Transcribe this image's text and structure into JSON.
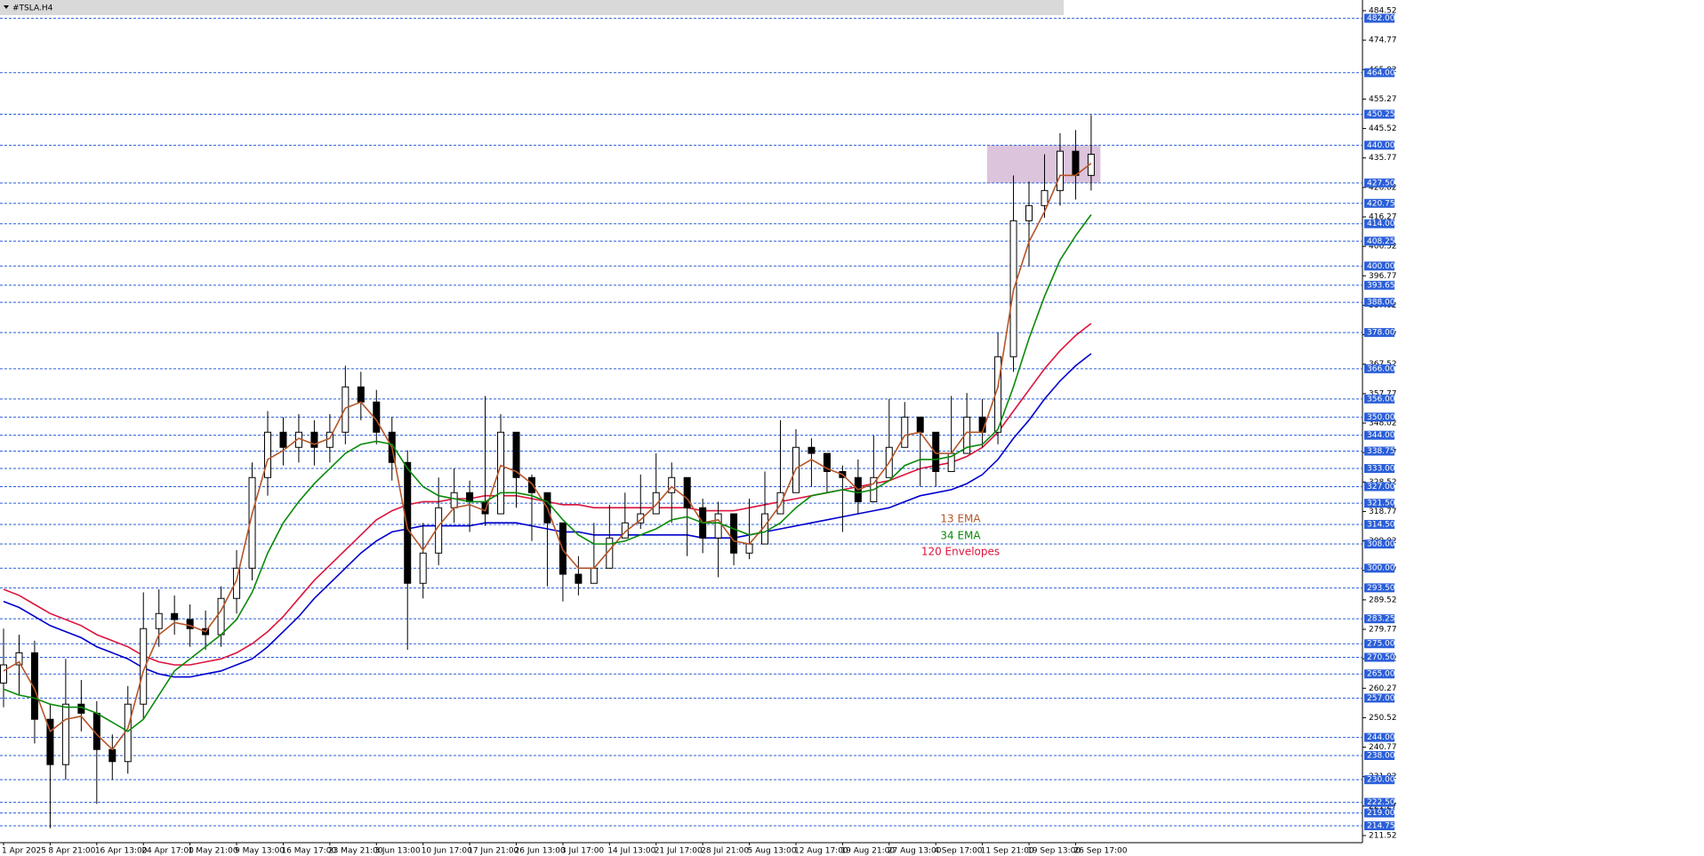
{
  "chart_data": {
    "type": "candlestick",
    "title": "#TSLA.H4",
    "categories": [
      "1 Apr 2025",
      null,
      null,
      "8 Apr 21:00",
      null,
      null,
      "16 Apr 13:00",
      null,
      null,
      "24 Apr 17:00",
      null,
      null,
      "1 May 21:00",
      null,
      null,
      "9 May 13:00",
      null,
      null,
      "16 May 17:00",
      null,
      null,
      "23 May 21:00",
      null,
      null,
      "3 Jun 13:00",
      null,
      null,
      "10 Jun 17:00",
      null,
      null,
      "17 Jun 21:00",
      null,
      null,
      "26 Jun 13:00",
      null,
      null,
      "3 Jul 17:00",
      null,
      null,
      "14 Jul 13:00",
      null,
      null,
      "21 Jul 17:00",
      null,
      null,
      "28 Jul 21:00",
      null,
      null,
      "5 Aug 13:00",
      null,
      null,
      "12 Aug 17:00",
      null,
      null,
      "19 Aug 21:00",
      null,
      null,
      "27 Aug 13:00",
      null,
      null,
      "4 Sep 17:00",
      null,
      null,
      "11 Sep 21:00",
      null,
      null,
      "19 Sep 13:00",
      null,
      null,
      "26 Sep 17:00",
      null
    ],
    "candles": {
      "up_color": "#ffffff",
      "down_color": "#000000",
      "open": [
        262,
        268,
        272,
        250,
        235,
        255,
        252,
        240,
        236,
        255,
        280,
        285,
        283,
        280,
        278,
        290,
        300,
        330,
        345,
        340,
        345,
        340,
        345,
        360,
        355,
        345,
        335,
        295,
        305,
        320,
        325,
        322,
        318,
        345,
        330,
        325,
        315,
        298,
        295,
        300,
        310,
        315,
        318,
        325,
        330,
        320,
        310,
        318,
        305,
        308,
        318,
        325,
        340,
        338,
        332,
        330,
        322,
        330,
        340,
        350,
        345,
        332,
        338,
        350,
        345,
        370,
        415,
        420,
        425,
        438,
        430
      ],
      "high": [
        280,
        278,
        276,
        255,
        270,
        263,
        256,
        245,
        261,
        292,
        293,
        291,
        288,
        286,
        294,
        306,
        335,
        352,
        350,
        351,
        349,
        351,
        367,
        365,
        359,
        350,
        339,
        315,
        330,
        333,
        329,
        357,
        351,
        335,
        331,
        320,
        304,
        304,
        315,
        321,
        325,
        331,
        338,
        335,
        326,
        323,
        322,
        314,
        323,
        332,
        349,
        346,
        343,
        338,
        334,
        336,
        344,
        356,
        355,
        349,
        344,
        357,
        358,
        356,
        378,
        430,
        428,
        437,
        444,
        445,
        450
      ],
      "low": [
        254,
        258,
        242,
        214,
        230,
        246,
        222,
        230,
        232,
        250,
        274,
        278,
        274,
        273,
        274,
        285,
        296,
        324,
        334,
        335,
        334,
        335,
        341,
        349,
        341,
        329,
        273,
        290,
        301,
        315,
        312,
        314,
        325,
        320,
        309,
        294,
        289,
        291,
        296,
        305,
        311,
        313,
        320,
        315,
        304,
        305,
        297,
        301,
        303,
        313,
        321,
        332,
        327,
        325,
        312,
        318,
        325,
        336,
        340,
        327,
        327,
        334,
        340,
        340,
        341,
        365,
        400,
        416,
        420,
        422,
        425
      ],
      "close": [
        268,
        272,
        250,
        235,
        255,
        252,
        240,
        236,
        255,
        280,
        285,
        283,
        280,
        278,
        290,
        300,
        330,
        345,
        340,
        345,
        340,
        345,
        360,
        355,
        345,
        335,
        295,
        305,
        320,
        325,
        322,
        318,
        345,
        330,
        325,
        315,
        298,
        295,
        300,
        310,
        315,
        318,
        325,
        330,
        320,
        310,
        318,
        305,
        308,
        318,
        325,
        340,
        338,
        332,
        330,
        322,
        330,
        340,
        350,
        345,
        332,
        338,
        350,
        345,
        370,
        415,
        420,
        425,
        438,
        430,
        437
      ]
    },
    "series": [
      {
        "name": "13 EMA",
        "color": "#b5562a",
        "values": [
          266,
          269,
          260,
          246,
          250,
          251,
          245,
          240,
          247,
          266,
          278,
          282,
          281,
          279,
          286,
          296,
          318,
          336,
          339,
          343,
          341,
          343,
          353,
          355,
          349,
          340,
          313,
          306,
          314,
          320,
          321,
          319,
          334,
          332,
          328,
          320,
          306,
          300,
          300,
          306,
          312,
          316,
          321,
          327,
          323,
          315,
          316,
          309,
          308,
          314,
          321,
          333,
          336,
          333,
          331,
          326,
          328,
          335,
          344,
          345,
          338,
          338,
          345,
          345,
          360,
          392,
          408,
          418,
          430,
          430,
          434
        ]
      },
      {
        "name": "34 EMA",
        "color": "#0a8a0a",
        "values": [
          260,
          258,
          257,
          255,
          254,
          254,
          252,
          249,
          246,
          250,
          258,
          266,
          270,
          274,
          278,
          283,
          292,
          305,
          315,
          322,
          328,
          333,
          338,
          341,
          342,
          341,
          333,
          327,
          324,
          323,
          322,
          322,
          325,
          325,
          324,
          322,
          316,
          311,
          308,
          308,
          309,
          311,
          313,
          316,
          317,
          315,
          315,
          313,
          311,
          312,
          315,
          320,
          324,
          325,
          326,
          325,
          326,
          329,
          334,
          336,
          336,
          337,
          340,
          341,
          346,
          360,
          376,
          390,
          402,
          410,
          417
        ]
      }
    ],
    "envelope": {
      "name": "120 Envelopes",
      "color": "#dc143c",
      "upper": {
        "color": "#dc143c",
        "values": [
          293,
          291,
          288,
          285,
          283,
          281,
          278,
          276,
          274,
          271,
          269,
          268,
          268,
          269,
          270,
          272,
          275,
          279,
          284,
          290,
          296,
          301,
          306,
          311,
          316,
          319,
          321,
          322,
          322,
          323,
          323,
          324,
          324,
          324,
          323,
          322,
          321,
          321,
          320,
          320,
          320,
          320,
          320,
          320,
          320,
          319,
          319,
          319,
          320,
          321,
          322,
          323,
          324,
          325,
          326,
          327,
          328,
          329,
          331,
          333,
          334,
          335,
          337,
          340,
          345,
          352,
          359,
          366,
          372,
          377,
          381
        ]
      },
      "lower": {
        "color": "#0000cd",
        "values": [
          289,
          287,
          284,
          281,
          279,
          277,
          274,
          272,
          270,
          267,
          265,
          264,
          264,
          265,
          266,
          268,
          270,
          274,
          279,
          284,
          290,
          295,
          300,
          305,
          309,
          312,
          313,
          314,
          314,
          314,
          314,
          315,
          315,
          315,
          314,
          313,
          312,
          312,
          311,
          311,
          311,
          311,
          311,
          311,
          311,
          310,
          310,
          310,
          311,
          312,
          313,
          314,
          315,
          316,
          317,
          318,
          319,
          320,
          322,
          324,
          325,
          326,
          328,
          331,
          336,
          343,
          349,
          356,
          362,
          367,
          371
        ]
      }
    },
    "zone": {
      "low": 427.5,
      "high": 440,
      "color": "#d8bfd8"
    },
    "levels": [
      {
        "value": 482,
        "label": "482.00"
      },
      {
        "value": 464,
        "label": "464.00"
      },
      {
        "value": 450.25,
        "label": "450.25"
      },
      {
        "value": 440,
        "label": "440.00"
      },
      {
        "value": 427.5,
        "label": "427.50"
      },
      {
        "value": 420.75,
        "label": "420.75"
      },
      {
        "value": 414,
        "label": "414.00"
      },
      {
        "value": 408.25,
        "label": "408.25"
      },
      {
        "value": 400,
        "label": "400.00"
      },
      {
        "value": 393.65,
        "label": "393.65"
      },
      {
        "value": 388,
        "label": "388.00"
      },
      {
        "value": 378,
        "label": "378.00"
      },
      {
        "value": 366,
        "label": "366.00"
      },
      {
        "value": 356,
        "label": "356.00"
      },
      {
        "value": 350,
        "label": "350.00"
      },
      {
        "value": 344,
        "label": "344.00"
      },
      {
        "value": 338.75,
        "label": "338.75"
      },
      {
        "value": 333,
        "label": "333.00"
      },
      {
        "value": 327,
        "label": "327.00"
      },
      {
        "value": 321.5,
        "label": "321.50"
      },
      {
        "value": 314.5,
        "label": "314.50"
      },
      {
        "value": 308,
        "label": "308.00"
      },
      {
        "value": 300,
        "label": "300.00"
      },
      {
        "value": 293.5,
        "label": "293.50"
      },
      {
        "value": 283.25,
        "label": "283.25"
      },
      {
        "value": 275,
        "label": "275.00"
      },
      {
        "value": 270.5,
        "label": "270.50"
      },
      {
        "value": 265,
        "label": "265.00"
      },
      {
        "value": 257,
        "label": "257.00"
      },
      {
        "value": 244,
        "label": "244.00"
      },
      {
        "value": 238,
        "label": "238.00"
      },
      {
        "value": 230,
        "label": "230.00"
      },
      {
        "value": 222.5,
        "label": "222.50"
      },
      {
        "value": 219,
        "label": "219.00"
      },
      {
        "value": 214.75,
        "label": "214.75"
      }
    ],
    "level_color": "#2b5fd9",
    "ylim": [
      211.52,
      484.52
    ],
    "yticks": [
      484.52,
      474.77,
      465.02,
      455.27,
      445.52,
      435.77,
      426.02,
      416.27,
      406.52,
      396.77,
      387.02,
      377.27,
      367.52,
      357.77,
      348.02,
      338.27,
      328.52,
      318.77,
      309.02,
      299.27,
      289.52,
      279.77,
      270.02,
      260.27,
      250.52,
      240.77,
      231.02,
      221.27,
      211.52
    ]
  }
}
